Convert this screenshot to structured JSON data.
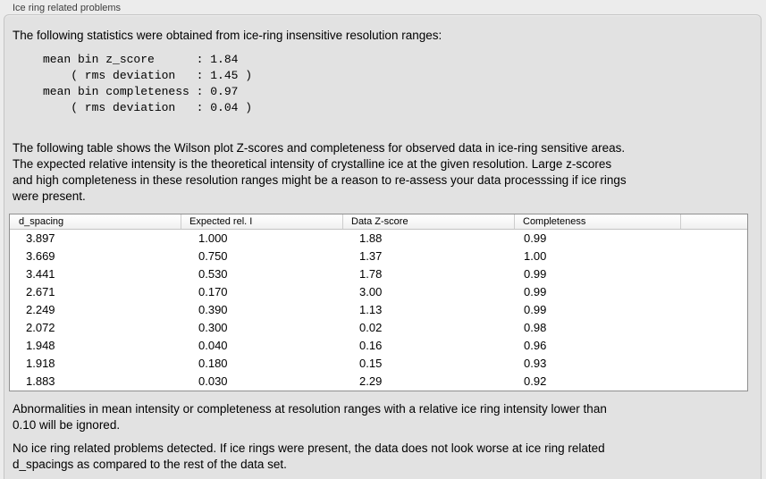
{
  "window": {
    "title": "Ice ring related problems"
  },
  "statistics": {
    "intro": "The following statistics were obtained from ice-ring insensitive resolution ranges:",
    "mono_lines": [
      "mean bin z_score      : 1.84",
      "    ( rms deviation   : 1.45 )",
      "mean bin completeness : 0.97",
      "    ( rms deviation   : 0.04 )"
    ]
  },
  "table_description_lines": [
    "The following table shows the Wilson plot Z-scores and completeness for observed data in ice-ring sensitive areas.",
    "The expected relative intensity is the theoretical intensity of crystalline ice at the given resolution. Large z-scores",
    "and high completeness in these resolution ranges might be a reason to re-assess your data processsing if ice rings",
    "were present."
  ],
  "table": {
    "columns": [
      {
        "label": "d_spacing"
      },
      {
        "label": "Expected rel. I"
      },
      {
        "label": "Data Z-score"
      },
      {
        "label": "Completeness"
      },
      {
        "label": ""
      }
    ],
    "rows": [
      [
        "3.897",
        "1.000",
        "1.88",
        "0.99"
      ],
      [
        "3.669",
        "0.750",
        "1.37",
        "1.00"
      ],
      [
        "3.441",
        "0.530",
        "1.78",
        "0.99"
      ],
      [
        "2.671",
        "0.170",
        "3.00",
        "0.99"
      ],
      [
        "2.249",
        "0.390",
        "1.13",
        "0.99"
      ],
      [
        "2.072",
        "0.300",
        "0.02",
        "0.98"
      ],
      [
        "1.948",
        "0.040",
        "0.16",
        "0.96"
      ],
      [
        "1.918",
        "0.180",
        "0.15",
        "0.93"
      ],
      [
        "1.883",
        "0.030",
        "2.29",
        "0.92"
      ]
    ]
  },
  "notes": {
    "ignore_note_lines": [
      "Abnormalities in mean intensity or completeness at resolution ranges with a relative ice ring intensity lower than",
      "0.10 will be ignored."
    ],
    "result_lines": [
      "No ice ring related problems detected. If ice rings were present, the data does not look worse at ice ring related",
      "d_spacings as compared to the rest of the data set."
    ]
  }
}
